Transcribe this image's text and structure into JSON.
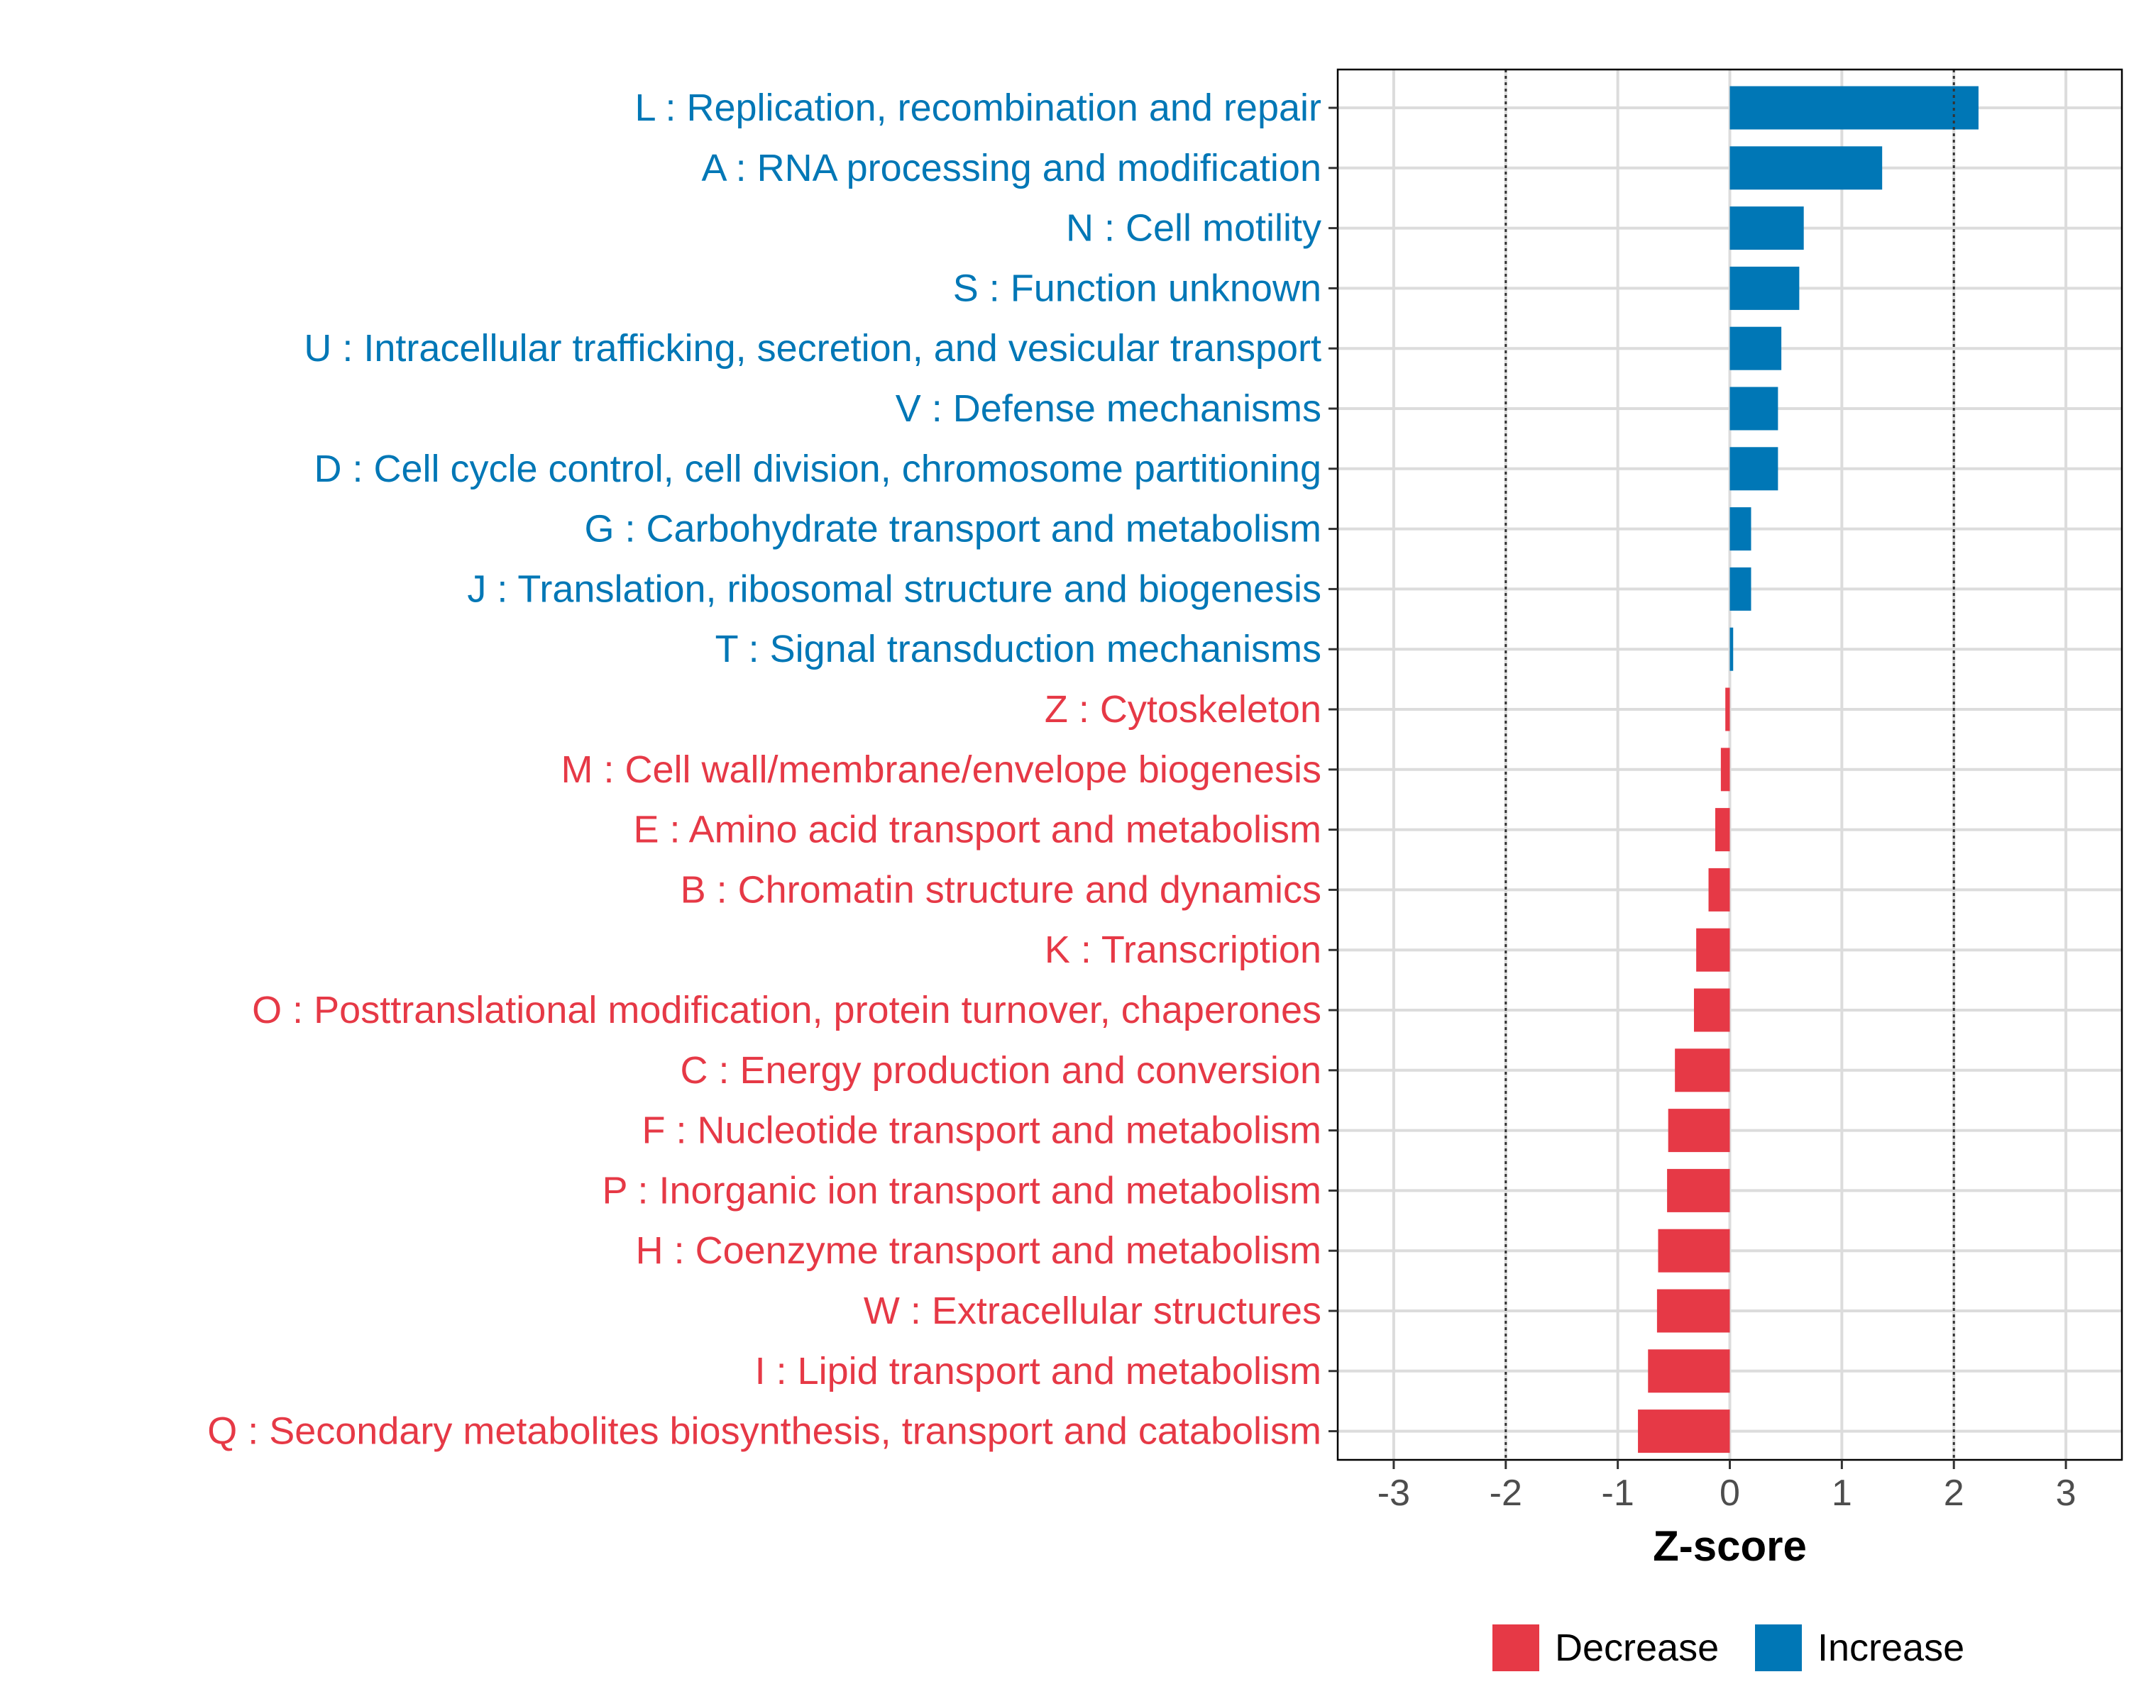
{
  "chart_data": {
    "type": "bar",
    "orientation": "horizontal",
    "title": "",
    "xlabel": "Z-score",
    "ylabel": "",
    "xlim": [
      -3.5,
      3.5
    ],
    "x_ticks": [
      -3,
      -2,
      -1,
      0,
      1,
      2,
      3
    ],
    "x_tick_labels": [
      "-3",
      "-2",
      "-1",
      "0",
      "1",
      "2",
      "3"
    ],
    "threshold_lines": [
      -2,
      2
    ],
    "grid": true,
    "legend_position": "bottom",
    "colors": {
      "Decrease": "#E63946",
      "Increase": "#0077B6"
    },
    "legend": [
      {
        "name": "Decrease",
        "color": "#E63946"
      },
      {
        "name": "Increase",
        "color": "#0077B6"
      }
    ],
    "categories": [
      "L : Replication, recombination and repair",
      "A : RNA processing and modification",
      "N : Cell motility",
      "S : Function unknown",
      "U : Intracellular trafficking, secretion, and vesicular transport",
      "V : Defense mechanisms",
      "D : Cell cycle control, cell division, chromosome partitioning",
      "G : Carbohydrate transport and metabolism",
      "J : Translation, ribosomal structure and biogenesis",
      "T : Signal transduction mechanisms",
      "Z : Cytoskeleton",
      "M : Cell wall/membrane/envelope biogenesis",
      "E : Amino acid transport and metabolism",
      "B : Chromatin structure and dynamics",
      "K : Transcription",
      "O : Posttranslational modification, protein turnover, chaperones",
      "C : Energy production and conversion",
      "F : Nucleotide transport and metabolism",
      "P : Inorganic ion transport and metabolism",
      "H : Coenzyme transport and metabolism",
      "W : Extracellular structures",
      "I : Lipid transport and metabolism",
      "Q : Secondary metabolites biosynthesis, transport and catabolism"
    ],
    "values": [
      2.22,
      1.36,
      0.66,
      0.62,
      0.46,
      0.43,
      0.43,
      0.19,
      0.19,
      0.03,
      -0.04,
      -0.08,
      -0.13,
      -0.19,
      -0.3,
      -0.32,
      -0.49,
      -0.55,
      -0.56,
      -0.64,
      -0.65,
      -0.73,
      -0.82
    ],
    "groups": [
      "Increase",
      "Increase",
      "Increase",
      "Increase",
      "Increase",
      "Increase",
      "Increase",
      "Increase",
      "Increase",
      "Increase",
      "Decrease",
      "Decrease",
      "Decrease",
      "Decrease",
      "Decrease",
      "Decrease",
      "Decrease",
      "Decrease",
      "Decrease",
      "Decrease",
      "Decrease",
      "Decrease",
      "Decrease"
    ]
  }
}
